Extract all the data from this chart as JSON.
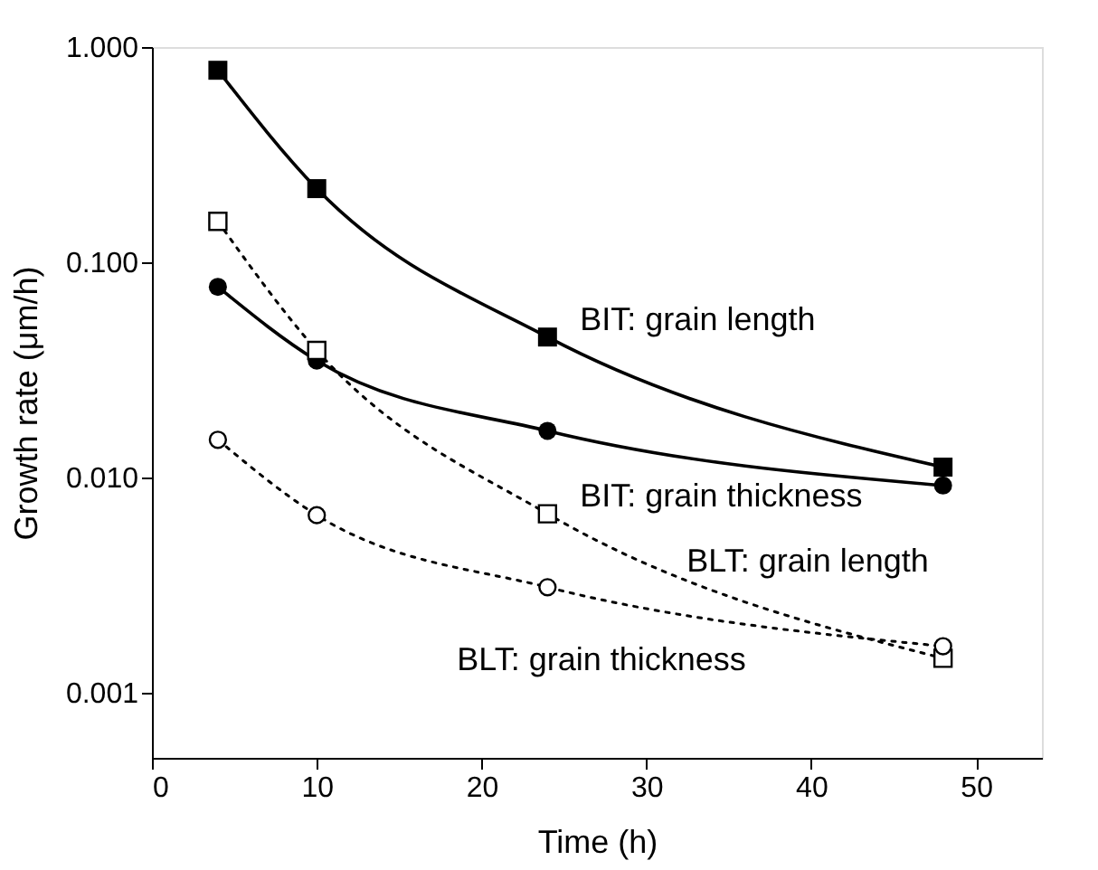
{
  "chart_data": {
    "type": "line",
    "xlabel": "Time (h)",
    "ylabel": "Growth rate (μm/h)",
    "log": "y",
    "grid": false,
    "xlim": [
      0,
      54
    ],
    "xticks": [
      0,
      10,
      20,
      30,
      40,
      50
    ],
    "ylim": [
      0.0005,
      1
    ],
    "yticks": [
      {
        "value": 0.001,
        "label": "0.001"
      },
      {
        "value": 0.01,
        "label": "0.010"
      },
      {
        "value": 0.1,
        "label": "0.100"
      },
      {
        "value": 1,
        "label": "1.000"
      }
    ],
    "x": [
      4,
      10,
      24,
      48
    ],
    "series": [
      {
        "name": "BIT: grain length",
        "color": "#000000",
        "marker": "square",
        "line_style": "solid",
        "values": [
          0.78,
          0.22,
          0.045,
          0.0112
        ]
      },
      {
        "name": "BIT: grain thickness",
        "color": "#000000",
        "marker": "circle",
        "line_style": "solid",
        "values": [
          0.077,
          0.035,
          0.0165,
          0.0092
        ]
      },
      {
        "name": "BLT: grain length",
        "color": "#000000",
        "marker": "square",
        "line_style": "dotted",
        "values": [
          0.155,
          0.039,
          0.0068,
          0.00145
        ]
      },
      {
        "name": "BLT: grain thickness",
        "color": "#000000",
        "marker": "circle",
        "line_style": "dotted",
        "values": [
          0.015,
          0.0067,
          0.0031,
          0.00165
        ]
      }
    ]
  }
}
